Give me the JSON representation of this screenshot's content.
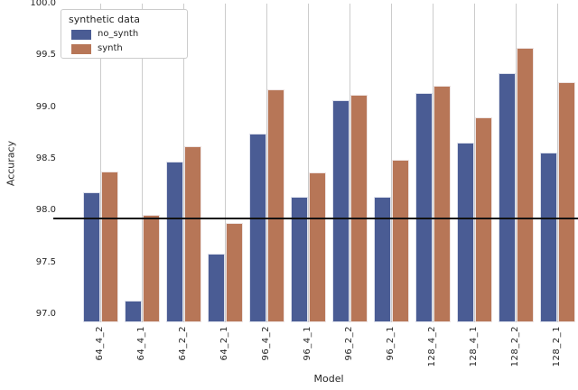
{
  "figure": {
    "ylabel": "Accuracy",
    "xlabel": "Model",
    "legend": {
      "title": "synthetic data",
      "entries": [
        {
          "label": "no_synth",
          "color": "#4a5c94"
        },
        {
          "label": "synth",
          "color": "#b77657"
        }
      ]
    },
    "colors": {
      "grid": "#cccccc",
      "text": "#262626",
      "reference_line": "#111111",
      "background": "#ffffff"
    }
  },
  "chart_data": {
    "type": "bar",
    "title": "",
    "xlabel": "Model",
    "ylabel": "Accuracy",
    "categories": [
      "64_4_2",
      "64_4_1",
      "64_2_2",
      "64_2_1",
      "96_4_2",
      "96_4_1",
      "96_2_2",
      "96_2_1",
      "128_4_2",
      "128_4_1",
      "128_2_2",
      "128_2_1"
    ],
    "series": [
      {
        "name": "no_synth",
        "color": "#4a5c94",
        "values": [
          98.18,
          97.13,
          98.47,
          97.58,
          98.74,
          98.13,
          99.07,
          98.13,
          99.14,
          98.66,
          99.33,
          98.56
        ]
      },
      {
        "name": "synth",
        "color": "#b77657",
        "values": [
          98.38,
          97.96,
          98.62,
          97.88,
          99.17,
          98.37,
          99.12,
          98.49,
          99.21,
          98.9,
          99.57,
          99.24
        ]
      }
    ],
    "yticks": [
      97.0,
      97.5,
      98.0,
      98.5,
      99.0,
      99.5,
      100.0
    ],
    "ylim": [
      96.92,
      100.0
    ],
    "reference_line": 97.92,
    "grid": "vertical-only",
    "legend_position": "upper-left",
    "legend_title": "synthetic data"
  }
}
